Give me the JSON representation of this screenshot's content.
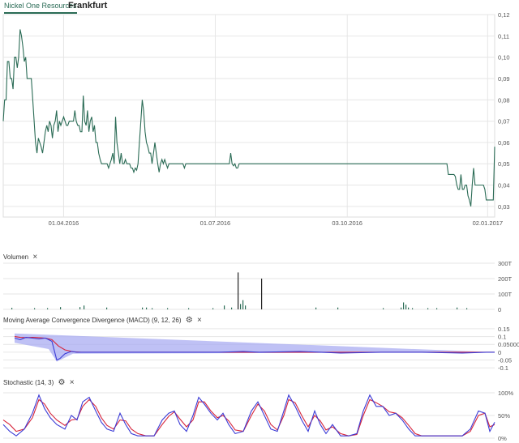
{
  "tabs": [
    {
      "label": "Nickel One Resources",
      "active": true
    },
    {
      "label": "Frankfurt",
      "active": false
    }
  ],
  "colors": {
    "price_line": "#2a6b55",
    "volume_bar": "#2a6b55",
    "macd_line": "#3b3bd6",
    "signal_line": "#d6243b",
    "macd_area": "#a9acf2",
    "stoch_k": "#3b3bd6",
    "stoch_d": "#d6243b",
    "grid": "#e6e6e6"
  },
  "panels": {
    "volume": {
      "title": "Volumen",
      "close_icon": "×"
    },
    "macd": {
      "title": "Moving Average Convergence Divergence (MACD) (9, 12, 26)",
      "settings_icon": "gear-icon",
      "close_icon": "×"
    },
    "stochastic": {
      "title": "Stochastic (14, 3)",
      "settings_icon": "gear-icon",
      "close_icon": "×"
    }
  },
  "chart_data": [
    {
      "type": "line",
      "name": "price",
      "x_ticks": [
        "01.04.2016",
        "01.07.2016",
        "03.10.2016",
        "02.01.2017"
      ],
      "y_ticks": [
        "0,03",
        "0,04",
        "0,05",
        "0,06",
        "0,07",
        "0,08",
        "0,09",
        "0,10",
        "0,11",
        "0,12"
      ],
      "ylim": [
        0.025,
        0.12
      ],
      "grid": true,
      "x_index_range": [
        0,
        350
      ],
      "x_tick_index": [
        43,
        151,
        245,
        345
      ],
      "series": [
        {
          "values": [
            0.07,
            0.08,
            0.08,
            0.098,
            0.098,
            0.09,
            0.09,
            0.085,
            0.1,
            0.1,
            0.095,
            0.1,
            0.113,
            0.11,
            0.105,
            0.098,
            0.1,
            0.09,
            0.09,
            0.09,
            0.09,
            0.08,
            0.07,
            0.06,
            0.055,
            0.062,
            0.06,
            0.058,
            0.055,
            0.06,
            0.065,
            0.068,
            0.065,
            0.07,
            0.068,
            0.062,
            0.068,
            0.07,
            0.075,
            0.065,
            0.07,
            0.068,
            0.07,
            0.072,
            0.07,
            0.068,
            0.068,
            0.07,
            0.07,
            0.07,
            0.07,
            0.075,
            0.07,
            0.068,
            0.068,
            0.065,
            0.065,
            0.082,
            0.07,
            0.068,
            0.075,
            0.065,
            0.07,
            0.072,
            0.065,
            0.068,
            0.06,
            0.06,
            0.055,
            0.052,
            0.05,
            0.05,
            0.05,
            0.05,
            0.05,
            0.048,
            0.05,
            0.052,
            0.055,
            0.05,
            0.072,
            0.06,
            0.055,
            0.05,
            0.055,
            0.05,
            0.05,
            0.052,
            0.05,
            0.05,
            0.05,
            0.048,
            0.048,
            0.046,
            0.048,
            0.047,
            0.05,
            0.06,
            0.07,
            0.08,
            0.075,
            0.065,
            0.06,
            0.058,
            0.055,
            0.055,
            0.05,
            0.055,
            0.06,
            0.055,
            0.05,
            0.046,
            0.05,
            0.052,
            0.05,
            0.052,
            0.05,
            0.048,
            0.05,
            0.05,
            0.05,
            0.05,
            0.05,
            0.05,
            0.05,
            0.05,
            0.05,
            0.05,
            0.05,
            0.048,
            0.05,
            0.05,
            0.05,
            0.05,
            0.05,
            0.05,
            0.05,
            0.05,
            0.05,
            0.05,
            0.05,
            0.05,
            0.05,
            0.05,
            0.05,
            0.05,
            0.05,
            0.05,
            0.05,
            0.05,
            0.05,
            0.05,
            0.05,
            0.05,
            0.05,
            0.05,
            0.05,
            0.05,
            0.05,
            0.05,
            0.05,
            0.05,
            0.055,
            0.05,
            0.049,
            0.05,
            0.048,
            0.048,
            0.05,
            0.05,
            0.05,
            0.05,
            0.05,
            0.05,
            0.05,
            0.05,
            0.05,
            0.05,
            0.05,
            0.05,
            0.05,
            0.05,
            0.05,
            0.05,
            0.05,
            0.05,
            0.05,
            0.05,
            0.05,
            0.05,
            0.05,
            0.05,
            0.05,
            0.05,
            0.05,
            0.05,
            0.05,
            0.05,
            0.05,
            0.05,
            0.05,
            0.05,
            0.05,
            0.05,
            0.05,
            0.05,
            0.05,
            0.05,
            0.05,
            0.05,
            0.05,
            0.05,
            0.05,
            0.05,
            0.05,
            0.05,
            0.05,
            0.05,
            0.05,
            0.05,
            0.05,
            0.05,
            0.05,
            0.05,
            0.05,
            0.05,
            0.05,
            0.05,
            0.05,
            0.05,
            0.05,
            0.05,
            0.05,
            0.05,
            0.05,
            0.05,
            0.05,
            0.05,
            0.05,
            0.05,
            0.05,
            0.05,
            0.05,
            0.05,
            0.05,
            0.05,
            0.05,
            0.05,
            0.05,
            0.05,
            0.05,
            0.05,
            0.05,
            0.05,
            0.05,
            0.05,
            0.05,
            0.05,
            0.05,
            0.05,
            0.05,
            0.05,
            0.05,
            0.05,
            0.05,
            0.05,
            0.05,
            0.05,
            0.05,
            0.05,
            0.05,
            0.05,
            0.05,
            0.05,
            0.05,
            0.05,
            0.05,
            0.05,
            0.05,
            0.05,
            0.05,
            0.05,
            0.05,
            0.05,
            0.05,
            0.05,
            0.05,
            0.05,
            0.05,
            0.05,
            0.05,
            0.05,
            0.05,
            0.05,
            0.05,
            0.05,
            0.05,
            0.05,
            0.05,
            0.05,
            0.05,
            0.05,
            0.05,
            0.05,
            0.05,
            0.05,
            0.05,
            0.05,
            0.05,
            0.05,
            0.05,
            0.05,
            0.05,
            0.05,
            0.05,
            0.05,
            0.05,
            0.045,
            0.045,
            0.045,
            0.045,
            0.045,
            0.044,
            0.04,
            0.038,
            0.038,
            0.045,
            0.038,
            0.038,
            0.04,
            0.04,
            0.035,
            0.033,
            0.03,
            0.04,
            0.048,
            0.04,
            0.04,
            0.04,
            0.04,
            0.04,
            0.04,
            0.04,
            0.038,
            0.033,
            0.033,
            0.033,
            0.033,
            0.033,
            0.033,
            0.058
          ]
        }
      ]
    },
    {
      "type": "bar",
      "name": "volume",
      "y_ticks": [
        "0",
        "100T",
        "200T",
        "300T"
      ],
      "ylim": [
        0,
        300
      ],
      "bars": [
        [
          14,
          10
        ],
        [
          42,
          8
        ],
        [
          58,
          8
        ],
        [
          74,
          15
        ],
        [
          98,
          15
        ],
        [
          103,
          25
        ],
        [
          131,
          12
        ],
        [
          175,
          12
        ],
        [
          180,
          12
        ],
        [
          187,
          8
        ],
        [
          206,
          8
        ],
        [
          232,
          8
        ],
        [
          262,
          8
        ],
        [
          276,
          25
        ],
        [
          285,
          12
        ],
        [
          293,
          240
        ],
        [
          296,
          35
        ],
        [
          299,
          60
        ],
        [
          302,
          25
        ],
        [
          322,
          200
        ],
        [
          389,
          12
        ],
        [
          416,
          12
        ],
        [
          472,
          8
        ],
        [
          494,
          12
        ],
        [
          497,
          45
        ],
        [
          500,
          30
        ],
        [
          503,
          12
        ],
        [
          508,
          8
        ],
        [
          527,
          8
        ],
        [
          538,
          8
        ],
        [
          563,
          12
        ],
        [
          575,
          8
        ]
      ]
    },
    {
      "type": "line",
      "name": "macd",
      "y_ticks": [
        "-0.1",
        "-0.05",
        "0",
        "0.05000",
        "0.1",
        "0.15"
      ],
      "ylim": [
        -0.13,
        0.16
      ],
      "macd": [
        [
          18,
          0.09
        ],
        [
          25,
          0.08
        ],
        [
          32,
          0.095
        ],
        [
          40,
          0.09
        ],
        [
          48,
          0.085
        ],
        [
          56,
          0.09
        ],
        [
          64,
          0.07
        ],
        [
          70,
          -0.05
        ],
        [
          74,
          -0.04
        ],
        [
          80,
          -0.01
        ],
        [
          88,
          0.005
        ],
        [
          95,
          0.0
        ],
        [
          180,
          0.0
        ],
        [
          220,
          0.0
        ],
        [
          245,
          0.0
        ],
        [
          270,
          0.0
        ],
        [
          300,
          0.005
        ],
        [
          320,
          0.0
        ],
        [
          370,
          0.005
        ],
        [
          420,
          -0.005
        ],
        [
          470,
          0.0
        ],
        [
          520,
          0.0
        ],
        [
          570,
          -0.005
        ],
        [
          600,
          0.0
        ],
        [
          610,
          0.0
        ]
      ],
      "signal": [
        [
          18,
          0.1
        ],
        [
          25,
          0.095
        ],
        [
          32,
          0.093
        ],
        [
          40,
          0.095
        ],
        [
          48,
          0.093
        ],
        [
          56,
          0.09
        ],
        [
          64,
          0.08
        ],
        [
          72,
          0.04
        ],
        [
          80,
          0.015
        ],
        [
          90,
          0.003
        ],
        [
          100,
          0.0
        ],
        [
          200,
          0.0
        ],
        [
          300,
          0.0
        ],
        [
          400,
          0.0
        ],
        [
          500,
          0.0
        ],
        [
          610,
          0.0
        ]
      ],
      "area_top": [
        [
          18,
          0.12
        ],
        [
          610,
          0.0
        ]
      ],
      "area_bottom": [
        [
          18,
          0.06
        ],
        [
          60,
          0.02
        ],
        [
          70,
          -0.06
        ],
        [
          90,
          -0.01
        ],
        [
          610,
          0.0
        ]
      ]
    },
    {
      "type": "line",
      "name": "stochastic",
      "y_ticks": [
        "0%",
        "50%",
        "100%"
      ],
      "ylim": [
        0,
        100
      ],
      "k": [
        [
          4,
          30
        ],
        [
          12,
          15
        ],
        [
          20,
          5
        ],
        [
          30,
          20
        ],
        [
          40,
          55
        ],
        [
          48,
          95
        ],
        [
          55,
          65
        ],
        [
          62,
          45
        ],
        [
          70,
          30
        ],
        [
          80,
          20
        ],
        [
          88,
          50
        ],
        [
          95,
          40
        ],
        [
          102,
          80
        ],
        [
          110,
          90
        ],
        [
          118,
          60
        ],
        [
          125,
          35
        ],
        [
          132,
          20
        ],
        [
          140,
          15
        ],
        [
          148,
          55
        ],
        [
          155,
          30
        ],
        [
          162,
          10
        ],
        [
          170,
          5
        ],
        [
          180,
          5
        ],
        [
          190,
          5
        ],
        [
          200,
          40
        ],
        [
          208,
          55
        ],
        [
          215,
          60
        ],
        [
          222,
          30
        ],
        [
          230,
          15
        ],
        [
          238,
          50
        ],
        [
          245,
          90
        ],
        [
          252,
          75
        ],
        [
          260,
          55
        ],
        [
          268,
          40
        ],
        [
          275,
          55
        ],
        [
          282,
          30
        ],
        [
          290,
          10
        ],
        [
          300,
          15
        ],
        [
          310,
          60
        ],
        [
          318,
          80
        ],
        [
          326,
          50
        ],
        [
          334,
          20
        ],
        [
          342,
          15
        ],
        [
          350,
          60
        ],
        [
          356,
          95
        ],
        [
          364,
          70
        ],
        [
          372,
          40
        ],
        [
          380,
          15
        ],
        [
          388,
          60
        ],
        [
          395,
          30
        ],
        [
          402,
          10
        ],
        [
          410,
          30
        ],
        [
          420,
          5
        ],
        [
          430,
          5
        ],
        [
          440,
          10
        ],
        [
          448,
          60
        ],
        [
          456,
          95
        ],
        [
          464,
          70
        ],
        [
          472,
          70
        ],
        [
          480,
          50
        ],
        [
          488,
          55
        ],
        [
          496,
          40
        ],
        [
          504,
          20
        ],
        [
          512,
          5
        ],
        [
          520,
          5
        ],
        [
          530,
          5
        ],
        [
          540,
          5
        ],
        [
          550,
          5
        ],
        [
          560,
          5
        ],
        [
          570,
          5
        ],
        [
          580,
          20
        ],
        [
          590,
          60
        ],
        [
          598,
          55
        ],
        [
          604,
          15
        ],
        [
          610,
          35
        ]
      ],
      "d": [
        [
          4,
          40
        ],
        [
          12,
          30
        ],
        [
          20,
          15
        ],
        [
          30,
          20
        ],
        [
          40,
          45
        ],
        [
          48,
          85
        ],
        [
          55,
          75
        ],
        [
          62,
          55
        ],
        [
          70,
          40
        ],
        [
          80,
          28
        ],
        [
          88,
          40
        ],
        [
          95,
          42
        ],
        [
          102,
          70
        ],
        [
          110,
          85
        ],
        [
          118,
          70
        ],
        [
          125,
          45
        ],
        [
          132,
          28
        ],
        [
          140,
          20
        ],
        [
          148,
          40
        ],
        [
          155,
          38
        ],
        [
          162,
          20
        ],
        [
          170,
          10
        ],
        [
          180,
          5
        ],
        [
          190,
          5
        ],
        [
          200,
          30
        ],
        [
          208,
          48
        ],
        [
          215,
          58
        ],
        [
          222,
          42
        ],
        [
          230,
          25
        ],
        [
          238,
          40
        ],
        [
          245,
          80
        ],
        [
          252,
          80
        ],
        [
          260,
          60
        ],
        [
          268,
          45
        ],
        [
          275,
          50
        ],
        [
          282,
          38
        ],
        [
          290,
          18
        ],
        [
          300,
          15
        ],
        [
          310,
          50
        ],
        [
          318,
          75
        ],
        [
          326,
          60
        ],
        [
          334,
          30
        ],
        [
          342,
          18
        ],
        [
          350,
          50
        ],
        [
          356,
          85
        ],
        [
          364,
          78
        ],
        [
          372,
          50
        ],
        [
          380,
          25
        ],
        [
          388,
          50
        ],
        [
          395,
          38
        ],
        [
          402,
          18
        ],
        [
          410,
          25
        ],
        [
          420,
          10
        ],
        [
          430,
          5
        ],
        [
          440,
          8
        ],
        [
          448,
          50
        ],
        [
          456,
          85
        ],
        [
          464,
          78
        ],
        [
          472,
          70
        ],
        [
          480,
          58
        ],
        [
          488,
          55
        ],
        [
          496,
          45
        ],
        [
          504,
          28
        ],
        [
          512,
          10
        ],
        [
          520,
          5
        ],
        [
          530,
          5
        ],
        [
          540,
          5
        ],
        [
          550,
          5
        ],
        [
          560,
          5
        ],
        [
          570,
          5
        ],
        [
          580,
          15
        ],
        [
          590,
          50
        ],
        [
          598,
          55
        ],
        [
          604,
          25
        ],
        [
          610,
          30
        ]
      ]
    }
  ]
}
